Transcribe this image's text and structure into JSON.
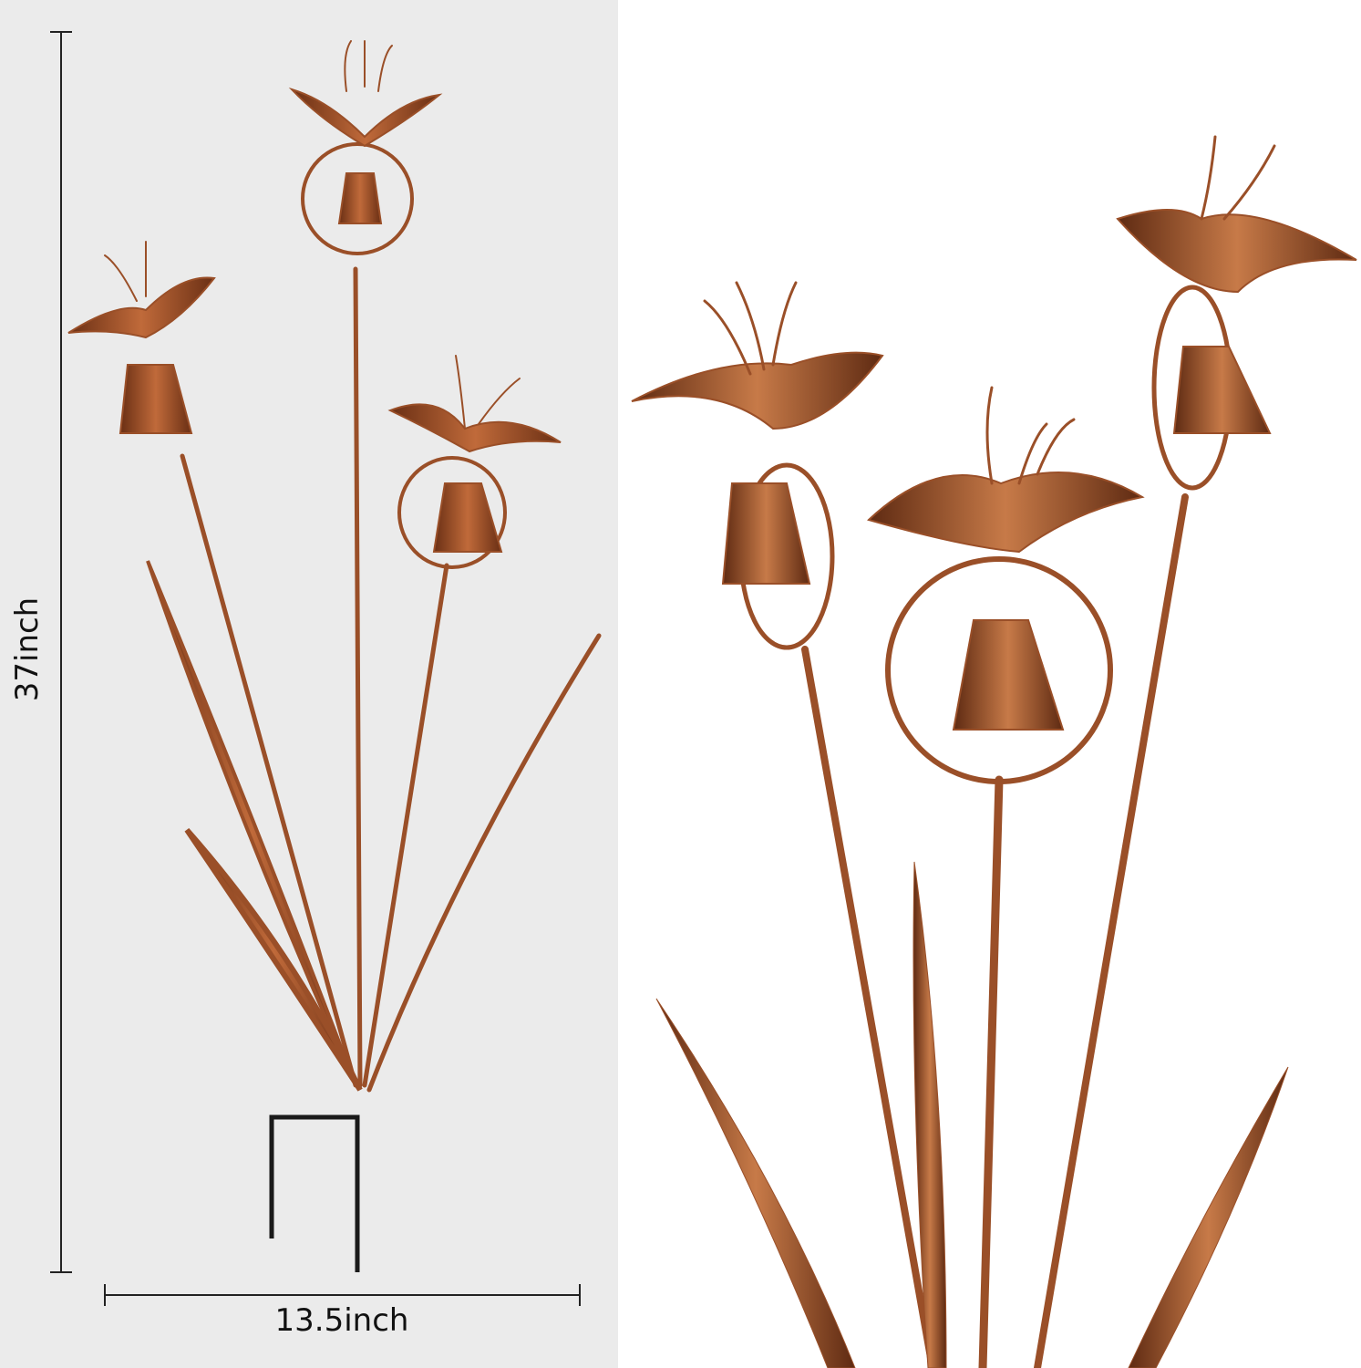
{
  "dimensions": {
    "height_label": "37inch",
    "width_label": "13.5inch"
  },
  "colors": {
    "left_background": "#ebebeb",
    "right_background": "#ffffff",
    "copper": "#a0552c",
    "copper_dark": "#5e2a12",
    "stake": "#1a1a1a"
  }
}
